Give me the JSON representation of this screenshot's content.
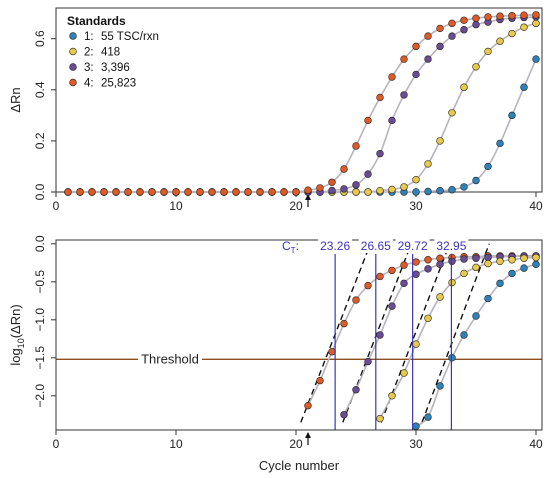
{
  "colors": {
    "std1": "#2f82b8",
    "std2": "#e9c94a",
    "std3": "#6a4c93",
    "std4": "#e05a25",
    "curve": "#b9b3bd",
    "threshold": "#8f4d1a",
    "ct_line": "#3a33c4",
    "fit_line": "#111111"
  },
  "chart_data": [
    {
      "type": "scatter",
      "ylabel": "ΔRn",
      "xlabel": "",
      "xlim": [
        0,
        40.5
      ],
      "ylim": [
        0,
        0.72
      ],
      "x_ticks": [
        0,
        10,
        20,
        30,
        40
      ],
      "y_ticks": [
        0.0,
        0.2,
        0.4,
        0.6
      ],
      "y_tick_labels": [
        "0.0",
        "0.2",
        "0.4",
        "0.6"
      ],
      "arrow_x": 21,
      "legend": {
        "title": "Standards",
        "placement": "top-left",
        "entries": [
          {
            "key": "1:",
            "label": "55 TSC/rxn",
            "color_key": "std1"
          },
          {
            "key": "2:",
            "label": "418",
            "color_key": "std2"
          },
          {
            "key": "3:",
            "label": "3,396",
            "color_key": "std3"
          },
          {
            "key": "4:",
            "label": "25,823",
            "color_key": "std4"
          }
        ]
      },
      "series": [
        {
          "name": "1: 55 TSC/rxn",
          "color_key": "std1",
          "x": [
            1,
            2,
            3,
            4,
            5,
            6,
            7,
            8,
            9,
            10,
            11,
            12,
            13,
            14,
            15,
            16,
            17,
            18,
            19,
            20,
            21,
            22,
            23,
            24,
            25,
            26,
            27,
            28,
            29,
            30,
            31,
            32,
            33,
            34,
            35,
            36,
            37,
            38,
            39,
            40
          ],
          "y": [
            0,
            0,
            0,
            0,
            0,
            0,
            0,
            0,
            0,
            0,
            0,
            0,
            0,
            0,
            0,
            0,
            0,
            0,
            0,
            0,
            0,
            0,
            0,
            0,
            0,
            0,
            0,
            0,
            0,
            0,
            0.002,
            0.005,
            0.009,
            0.02,
            0.045,
            0.1,
            0.19,
            0.3,
            0.41,
            0.52
          ]
        },
        {
          "name": "2: 418",
          "color_key": "std2",
          "x": [
            1,
            2,
            3,
            4,
            5,
            6,
            7,
            8,
            9,
            10,
            11,
            12,
            13,
            14,
            15,
            16,
            17,
            18,
            19,
            20,
            21,
            22,
            23,
            24,
            25,
            26,
            27,
            28,
            29,
            30,
            31,
            32,
            33,
            34,
            35,
            36,
            37,
            38,
            39,
            40
          ],
          "y": [
            0,
            0,
            0,
            0,
            0,
            0,
            0,
            0,
            0,
            0,
            0,
            0,
            0,
            0,
            0,
            0,
            0,
            0,
            0,
            0,
            0,
            0,
            0,
            0,
            0,
            0,
            0.005,
            0.01,
            0.02,
            0.048,
            0.11,
            0.2,
            0.31,
            0.41,
            0.49,
            0.55,
            0.59,
            0.62,
            0.645,
            0.66
          ]
        },
        {
          "name": "3: 3,396",
          "color_key": "std3",
          "x": [
            1,
            2,
            3,
            4,
            5,
            6,
            7,
            8,
            9,
            10,
            11,
            12,
            13,
            14,
            15,
            16,
            17,
            18,
            19,
            20,
            21,
            22,
            23,
            24,
            25,
            26,
            27,
            28,
            29,
            30,
            31,
            32,
            33,
            34,
            35,
            36,
            37,
            38,
            39,
            40
          ],
          "y": [
            0,
            0,
            0,
            0,
            0,
            0,
            0,
            0,
            0,
            0,
            0,
            0,
            0,
            0,
            0,
            0,
            0,
            0,
            0,
            0,
            0,
            0,
            0.006,
            0.012,
            0.028,
            0.07,
            0.15,
            0.28,
            0.38,
            0.46,
            0.52,
            0.57,
            0.61,
            0.635,
            0.655,
            0.665,
            0.675,
            0.68,
            0.683,
            0.685
          ]
        },
        {
          "name": "4: 25,823",
          "color_key": "std4",
          "x": [
            1,
            2,
            3,
            4,
            5,
            6,
            7,
            8,
            9,
            10,
            11,
            12,
            13,
            14,
            15,
            16,
            17,
            18,
            19,
            20,
            21,
            22,
            23,
            24,
            25,
            26,
            27,
            28,
            29,
            30,
            31,
            32,
            33,
            34,
            35,
            36,
            37,
            38,
            39,
            40
          ],
          "y": [
            0,
            0,
            0,
            0,
            0,
            0,
            0,
            0,
            0,
            0,
            0,
            0,
            0,
            0,
            0,
            0,
            0,
            0,
            0,
            0,
            0.007,
            0.016,
            0.038,
            0.09,
            0.18,
            0.28,
            0.37,
            0.45,
            0.52,
            0.57,
            0.61,
            0.64,
            0.66,
            0.672,
            0.68,
            0.685,
            0.688,
            0.69,
            0.692,
            0.693
          ]
        }
      ]
    },
    {
      "type": "scatter",
      "ylabel": "log10(ΔRn)",
      "ylabel_main": "log",
      "ylabel_sub": "10",
      "ylabel_tail": "(ΔRn)",
      "xlabel": "Cycle number",
      "xlim": [
        0,
        40.5
      ],
      "ylim": [
        -2.45,
        0.05
      ],
      "x_ticks": [
        0,
        10,
        20,
        30,
        40
      ],
      "y_ticks": [
        0.0,
        -0.5,
        -1.0,
        -1.5,
        -2.0
      ],
      "y_tick_labels": [
        "0.0",
        "−0.5",
        "−1.0",
        "−1.5",
        "−2.0"
      ],
      "arrow_x": 21,
      "threshold": {
        "value": -1.52,
        "label": "Threshold",
        "label_x": 9.5
      },
      "ct_label_main": "C",
      "ct_label_sub": "T",
      "ct_label_tail": ":",
      "ct_values": [
        23.26,
        26.65,
        29.72,
        32.95
      ],
      "ct_labels": [
        "23.26",
        "26.65",
        "29.72",
        "32.95"
      ],
      "series": [
        {
          "name": "4: 25,823",
          "color_key": "std4",
          "x": [
            21,
            22,
            23,
            24,
            25,
            26,
            27,
            28,
            29,
            30,
            31,
            32,
            33,
            34,
            35,
            36,
            37,
            38,
            39,
            40
          ],
          "y": [
            -2.13,
            -1.8,
            -1.42,
            -1.05,
            -0.74,
            -0.55,
            -0.43,
            -0.35,
            -0.28,
            -0.24,
            -0.21,
            -0.19,
            -0.18,
            -0.17,
            -0.17,
            -0.16,
            -0.16,
            -0.16,
            -0.16,
            -0.16
          ]
        },
        {
          "name": "3: 3,396",
          "color_key": "std3",
          "x": [
            24,
            25,
            26,
            27,
            28,
            29,
            30,
            31,
            32,
            33,
            34,
            35,
            36,
            37,
            38,
            39,
            40
          ],
          "y": [
            -2.25,
            -1.92,
            -1.55,
            -1.2,
            -0.82,
            -0.52,
            -0.4,
            -0.33,
            -0.27,
            -0.23,
            -0.2,
            -0.19,
            -0.18,
            -0.17,
            -0.17,
            -0.16,
            -0.16
          ]
        },
        {
          "name": "2: 418",
          "color_key": "std2",
          "x": [
            27,
            28,
            29,
            30,
            31,
            32,
            33,
            34,
            35,
            36,
            37,
            38,
            39,
            40
          ],
          "y": [
            -2.3,
            -2.0,
            -1.7,
            -1.32,
            -0.98,
            -0.7,
            -0.51,
            -0.39,
            -0.31,
            -0.26,
            -0.23,
            -0.21,
            -0.19,
            -0.18
          ]
        },
        {
          "name": "1: 55 TSC/rxn",
          "color_key": "std1",
          "x": [
            30,
            31,
            32,
            33,
            34,
            35,
            36,
            37,
            38,
            39,
            40
          ],
          "y": [
            -2.4,
            -2.28,
            -1.87,
            -1.5,
            -1.2,
            -0.95,
            -0.72,
            -0.52,
            -0.39,
            -0.32,
            -0.27
          ]
        }
      ],
      "fit_lines": [
        {
          "color_key": "std4",
          "x": [
            20.4,
            26.2
          ],
          "y": [
            -2.35,
            0.0
          ]
        },
        {
          "color_key": "std3",
          "x": [
            23.9,
            29.6
          ],
          "y": [
            -2.35,
            0.0
          ]
        },
        {
          "color_key": "std2",
          "x": [
            27.1,
            32.8
          ],
          "y": [
            -2.35,
            0.0
          ]
        },
        {
          "color_key": "std1",
          "x": [
            30.5,
            36.1
          ],
          "y": [
            -2.35,
            0.0
          ]
        }
      ]
    }
  ]
}
